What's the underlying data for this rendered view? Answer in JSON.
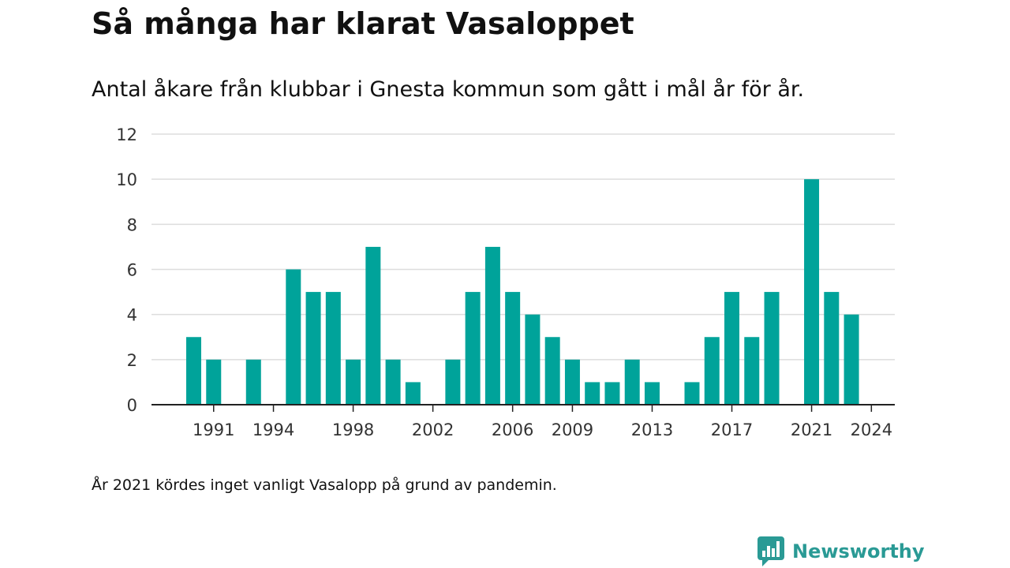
{
  "header": {
    "title": "Så många har klarat Vasaloppet",
    "subtitle": "Antal åkare från klubbar i Gnesta kommun som gått i mål år för år."
  },
  "footnote": "År 2021 kördes inget vanligt Vasalopp på grund av pandemin.",
  "brand": {
    "name": "Newsworthy",
    "icon": "bar-chart-speech-bubble-icon",
    "color": "#2a9a95"
  },
  "colors": {
    "bar": "#00a39a",
    "grid": "#dddddd",
    "axis": "#222222"
  },
  "chart_data": {
    "type": "bar",
    "title": "Så många har klarat Vasaloppet",
    "subtitle": "Antal åkare från klubbar i Gnesta kommun som gått i mål år för år.",
    "xlabel": "",
    "ylabel": "",
    "ylim": [
      0,
      12
    ],
    "yticks": [
      0,
      2,
      4,
      6,
      8,
      10,
      12
    ],
    "grid": true,
    "legend": "none",
    "categories": [
      1990,
      1991,
      1992,
      1993,
      1994,
      1995,
      1996,
      1997,
      1998,
      1999,
      2000,
      2001,
      2002,
      2003,
      2004,
      2005,
      2006,
      2007,
      2008,
      2009,
      2010,
      2011,
      2012,
      2013,
      2014,
      2015,
      2016,
      2017,
      2018,
      2019,
      2020,
      2021,
      2022,
      2023,
      2024
    ],
    "values": [
      3,
      2,
      0,
      2,
      0,
      6,
      5,
      5,
      2,
      7,
      2,
      1,
      0,
      2,
      5,
      7,
      5,
      4,
      3,
      2,
      1,
      1,
      2,
      1,
      0,
      1,
      3,
      5,
      3,
      5,
      0,
      10,
      5,
      4,
      0
    ],
    "xtick_labels": [
      "1991",
      "1994",
      "1998",
      "2002",
      "2006",
      "2009",
      "2013",
      "2017",
      "2021",
      "2024"
    ]
  }
}
